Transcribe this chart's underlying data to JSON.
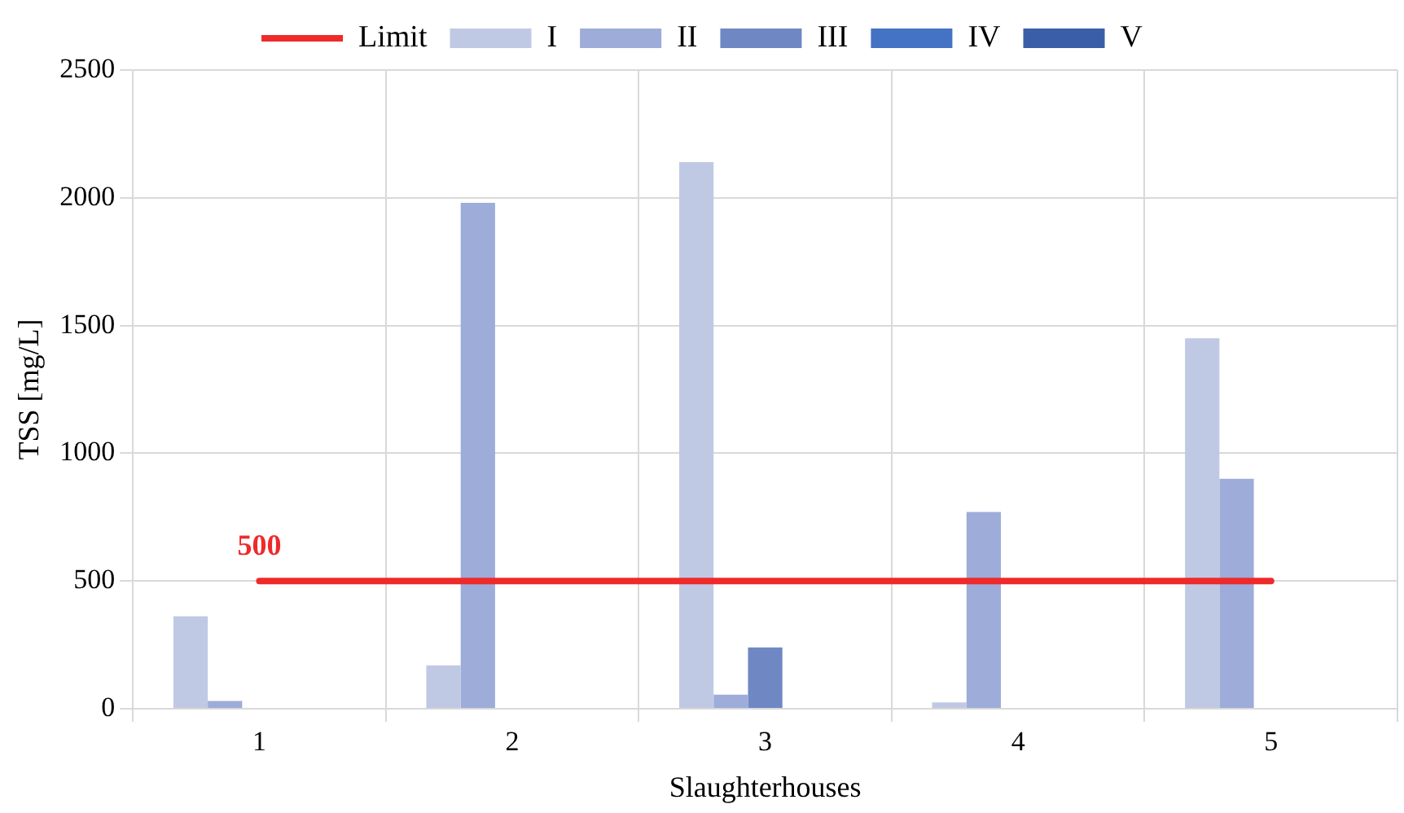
{
  "chart_data": {
    "type": "bar",
    "xlabel": "Slaughterhouses",
    "ylabel": "TSS [mg/L]",
    "categories": [
      "1",
      "2",
      "3",
      "4",
      "5"
    ],
    "series": [
      {
        "name": "I",
        "color": "#c0c9e4",
        "values": [
          362,
          170,
          2140,
          25,
          1450
        ]
      },
      {
        "name": "II",
        "color": "#9dacd9",
        "values": [
          30,
          1980,
          55,
          770,
          900
        ]
      },
      {
        "name": "III",
        "color": "#6f88c4",
        "values": [
          null,
          null,
          240,
          null,
          null
        ]
      },
      {
        "name": "IV",
        "color": "#4472c4",
        "values": [
          null,
          null,
          null,
          null,
          null
        ]
      },
      {
        "name": "V",
        "color": "#3a5ea8",
        "values": [
          null,
          null,
          null,
          null,
          null
        ]
      },
      {
        "name": "Limit",
        "type": "line",
        "color": "#ee2a2a",
        "values": [
          500,
          500,
          500,
          500,
          500
        ]
      }
    ],
    "ylim": [
      0,
      2500
    ],
    "yticks": [
      0,
      500,
      1000,
      1500,
      2000,
      2500
    ],
    "grid": true,
    "legend": "top",
    "annotations": [
      {
        "text": "500",
        "x": "1",
        "y": 500
      }
    ]
  }
}
